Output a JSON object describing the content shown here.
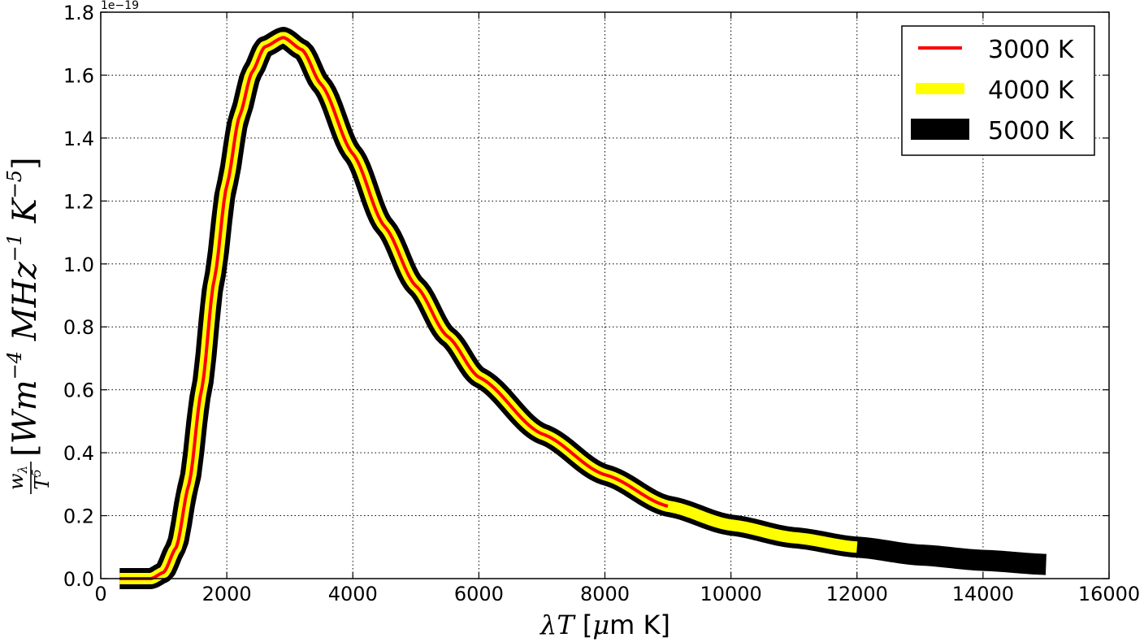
{
  "chart_data": {
    "type": "line",
    "title": "",
    "xlabel": "λT [μm K]",
    "ylabel": "w_λ / T⁵ [W m⁻⁴ MHz⁻¹ K⁻⁵]",
    "y_offset_label": "1e−19",
    "xlim": [
      0,
      16000
    ],
    "ylim": [
      0.0,
      1.8
    ],
    "x_scale_factor_note": "",
    "xticks": [
      0,
      2000,
      4000,
      6000,
      8000,
      10000,
      12000,
      14000,
      16000
    ],
    "xtick_labels": [
      "0",
      "2000",
      "4000",
      "6000",
      "8000",
      "10000",
      "12000",
      "14000",
      "16000"
    ],
    "yticks": [
      0.0,
      0.2,
      0.4,
      0.6,
      0.8,
      1.0,
      1.2,
      1.4,
      1.6,
      1.8
    ],
    "ytick_labels": [
      "0.0",
      "0.2",
      "0.4",
      "0.6",
      "0.8",
      "1.0",
      "1.2",
      "1.4",
      "1.6",
      "1.8"
    ],
    "grid": true,
    "legend_position": "top-right",
    "series": [
      {
        "name": "3000 K",
        "color": "#ff0000",
        "x_range": [
          300,
          9000
        ]
      },
      {
        "name": "4000 K",
        "color": "#ffff00",
        "x_range": [
          300,
          12000
        ]
      },
      {
        "name": "5000 K",
        "color": "#000000",
        "x_range": [
          300,
          15000
        ]
      }
    ],
    "curve_points": {
      "x": [
        300,
        800,
        1000,
        1200,
        1400,
        1600,
        1800,
        2000,
        2200,
        2400,
        2600,
        2898,
        3200,
        3500,
        4000,
        4500,
        5000,
        5500,
        6000,
        7000,
        8000,
        9000,
        10000,
        11000,
        12000,
        13000,
        14000,
        15000
      ],
      "y": [
        0.0,
        0.0,
        0.02,
        0.1,
        0.3,
        0.6,
        0.95,
        1.25,
        1.47,
        1.61,
        1.69,
        1.72,
        1.68,
        1.57,
        1.35,
        1.12,
        0.93,
        0.77,
        0.64,
        0.46,
        0.33,
        0.23,
        0.17,
        0.13,
        0.1,
        0.075,
        0.058,
        0.045
      ]
    }
  }
}
